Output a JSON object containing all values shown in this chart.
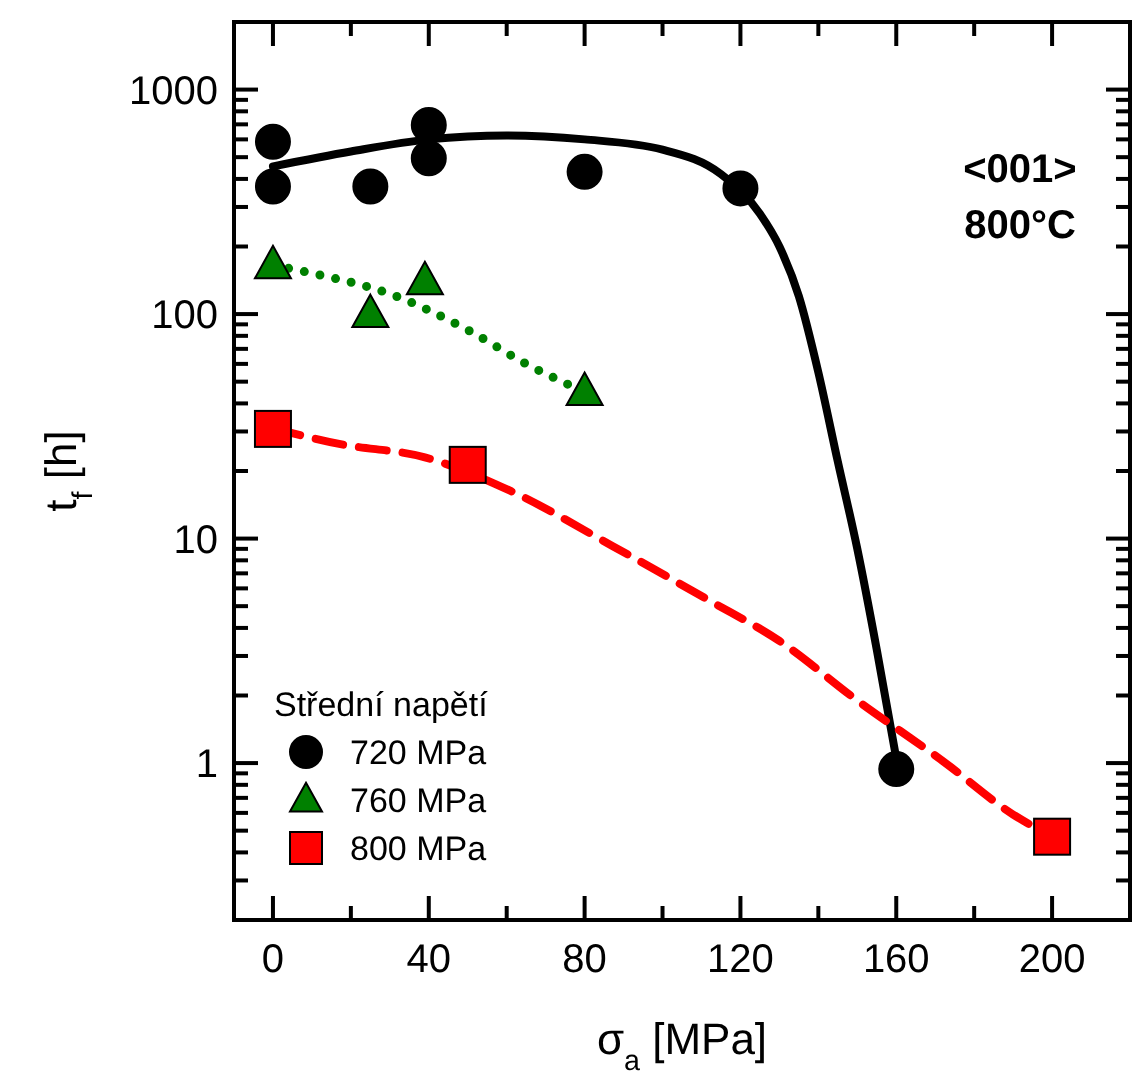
{
  "chart_data": {
    "type": "scatter",
    "xlabel": "σ$_{a}$ [MPa]",
    "ylabel": "t$_{f}$ [h]",
    "legend_title": "Střední napětí",
    "legend": "bottom left",
    "log": "y",
    "xlim": [
      -10,
      220
    ],
    "ylim": [
      0.2,
      2000
    ],
    "xticks": [
      0,
      {
        "value": 20,
        "label": null
      },
      40,
      {
        "value": 60,
        "label": null
      },
      80,
      {
        "value": 100,
        "label": null
      },
      120,
      {
        "value": 140,
        "label": null
      },
      160,
      {
        "value": 180,
        "label": null
      },
      200
    ],
    "yticks": [
      {
        "value": 0.2,
        "label": null
      },
      {
        "value": 0.3,
        "label": null
      },
      {
        "value": 0.4,
        "label": null
      },
      {
        "value": 0.5,
        "label": null
      },
      {
        "value": 0.6,
        "label": null
      },
      {
        "value": 0.7,
        "label": null
      },
      {
        "value": 0.8,
        "label": null
      },
      {
        "value": 0.9,
        "label": null
      },
      1,
      {
        "value": 2,
        "label": null
      },
      {
        "value": 3,
        "label": null
      },
      {
        "value": 4,
        "label": null
      },
      {
        "value": 5,
        "label": null
      },
      {
        "value": 6,
        "label": null
      },
      {
        "value": 7,
        "label": null
      },
      {
        "value": 8,
        "label": null
      },
      {
        "value": 9,
        "label": null
      },
      10,
      {
        "value": 20,
        "label": null
      },
      {
        "value": 30,
        "label": null
      },
      {
        "value": 40,
        "label": null
      },
      {
        "value": 50,
        "label": null
      },
      {
        "value": 60,
        "label": null
      },
      {
        "value": 70,
        "label": null
      },
      {
        "value": 80,
        "label": null
      },
      {
        "value": 90,
        "label": null
      },
      100,
      {
        "value": 200,
        "label": null
      },
      {
        "value": 300,
        "label": null
      },
      {
        "value": 400,
        "label": null
      },
      {
        "value": 500,
        "label": null
      },
      {
        "value": 600,
        "label": null
      },
      {
        "value": 700,
        "label": null
      },
      {
        "value": 800,
        "label": null
      },
      {
        "value": 900,
        "label": null
      },
      1000,
      {
        "value": 2000,
        "label": null
      }
    ],
    "annotations": [
      "<001>",
      "800°C"
    ],
    "series": [
      {
        "type": "line",
        "color": "#000000",
        "marker": "none",
        "line_style": "solid",
        "x": [
          0,
          20,
          40,
          60,
          80,
          100,
          115,
          125,
          130,
          135,
          140,
          145,
          150,
          155,
          160
        ],
        "values": [
          455,
          530,
          600,
          625,
          600,
          540,
          420,
          280,
          200,
          120,
          55,
          22,
          9,
          3.2,
          1.05
        ]
      },
      {
        "type": "line",
        "color": "#008000",
        "marker": "none",
        "line_style": "dotted",
        "x": [
          0,
          10,
          30,
          50,
          65,
          80
        ],
        "values": [
          165,
          152,
          123,
          85,
          60,
          45
        ]
      },
      {
        "type": "line",
        "color": "#ff0000",
        "marker": "none",
        "line_style": "dashed",
        "x": [
          0,
          17,
          39,
          61,
          87,
          112,
          130,
          150,
          172,
          190,
          200
        ],
        "values": [
          31,
          26.4,
          23,
          16.3,
          9.3,
          5.3,
          3.5,
          1.9,
          1.02,
          0.59,
          0.47
        ]
      },
      {
        "name": "720 MPa",
        "color": "#000000",
        "marker": "circle",
        "x": [
          0,
          0,
          25,
          40,
          40,
          80,
          120,
          160
        ],
        "values": [
          586,
          370,
          370,
          695,
          494,
          430,
          363,
          0.94
        ]
      },
      {
        "name": "760 MPa",
        "color": "#008000",
        "marker": "triangle",
        "x": [
          0,
          25,
          39,
          80
        ],
        "values": [
          165,
          100,
          140,
          45
        ]
      },
      {
        "name": "800 MPa",
        "color": "#ff0000",
        "marker": "square",
        "x": [
          0,
          50,
          200
        ],
        "values": [
          30.8,
          21.3,
          0.47
        ]
      }
    ]
  }
}
